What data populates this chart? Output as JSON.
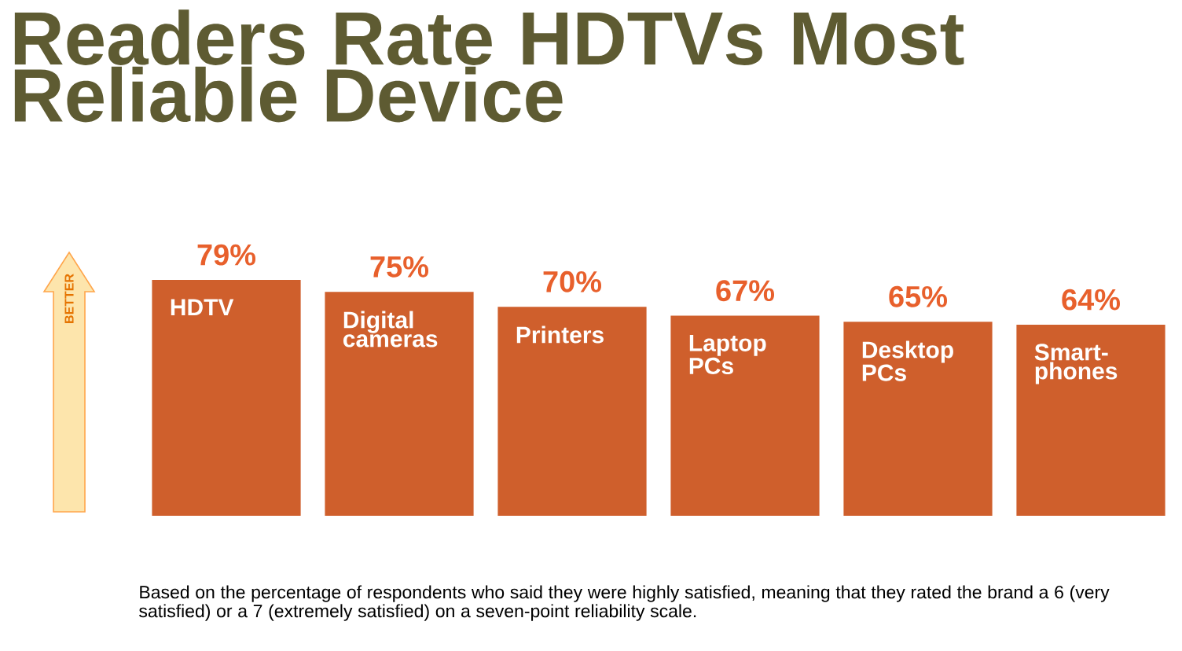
{
  "chart_data": {
    "type": "bar",
    "title": "Readers Rate HDTVs Most Reliable Device",
    "categories": [
      "HDTV",
      "Digital cameras",
      "Printers",
      "Laptop PCs",
      "Desktop PCs",
      "Smart-phones"
    ],
    "values": [
      79,
      75,
      70,
      67,
      65,
      64
    ],
    "value_labels": [
      "79%",
      "75%",
      "70%",
      "67%",
      "65%",
      "64%"
    ],
    "color": "#cf5f2c",
    "tick_labels": false,
    "annotations": [
      "BETTER",
      "Based on the percentage of respondents who said they were highly satisfied, meaning that they rated the brand a 6 (very satisfied) or a 7 (extremely satisfied) on a seven-point reliability scale."
    ]
  }
}
